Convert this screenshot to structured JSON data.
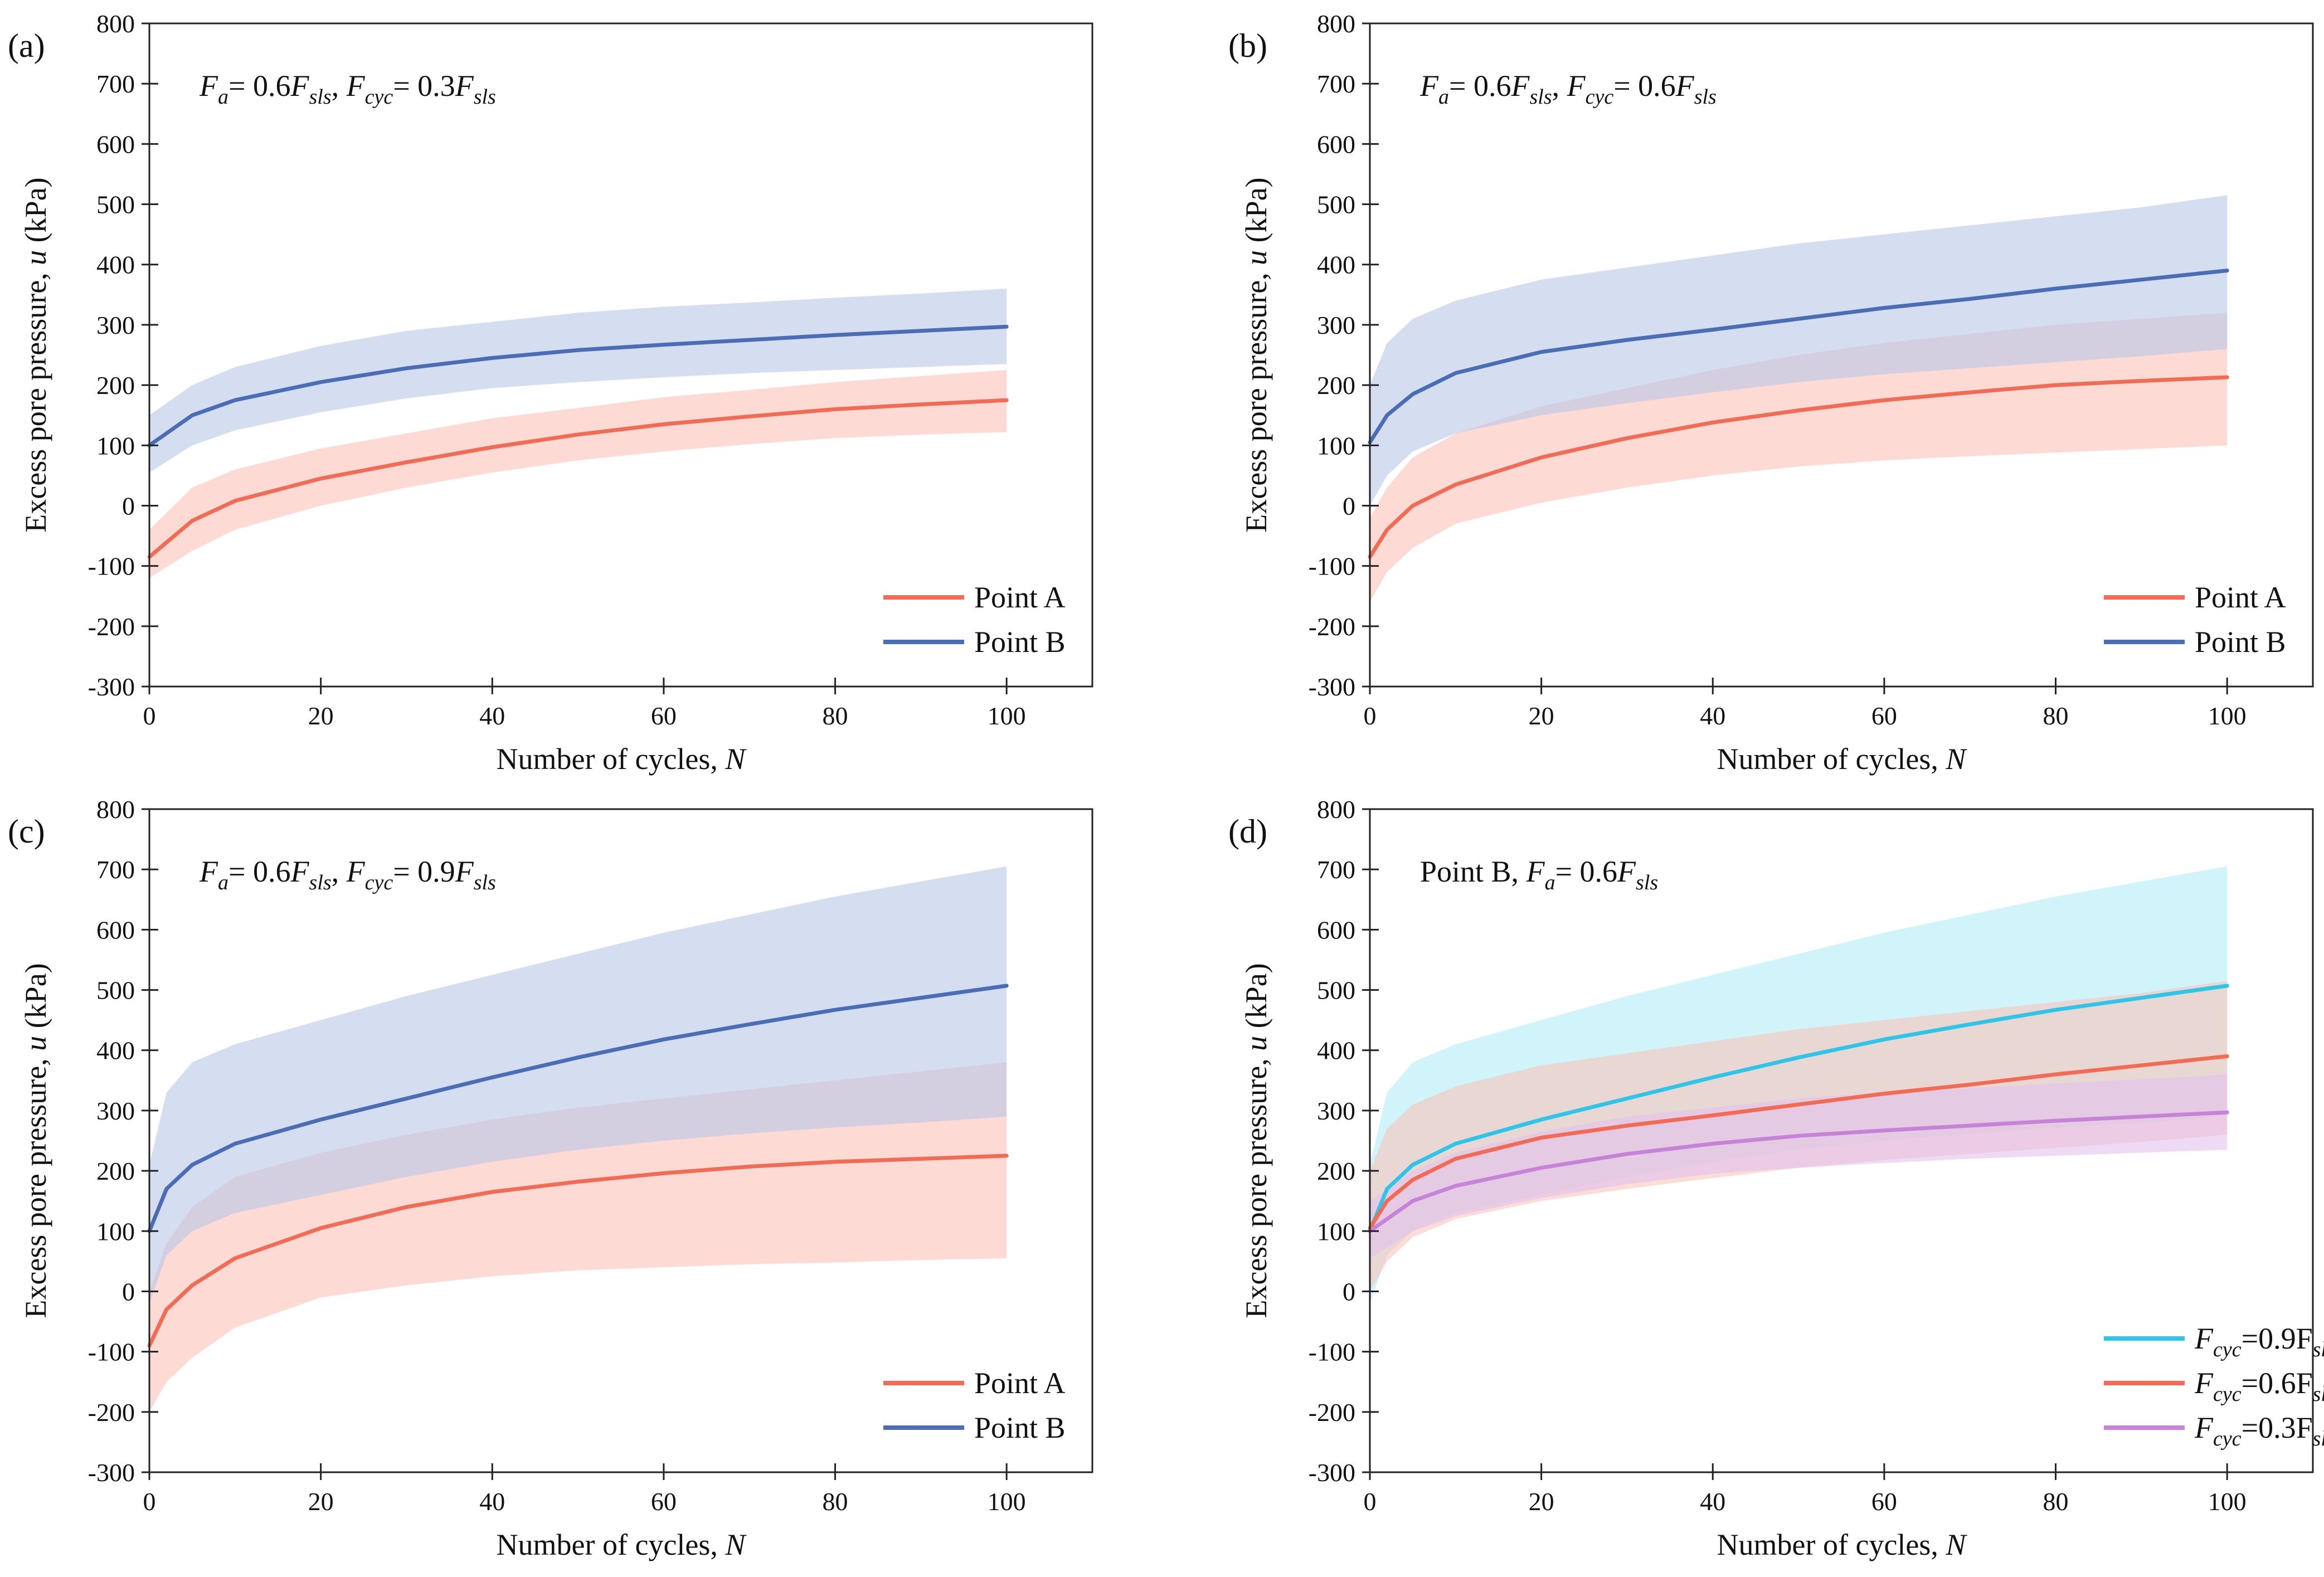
{
  "figure": {
    "colors": {
      "point_a": "#f26b55",
      "point_b": "#4a6db5",
      "point_a_band": "#fbc3b8",
      "point_b_band": "#b9c7e8",
      "fcyc_09": "#2ec5e8",
      "fcyc_09_band": "#b2ebf7",
      "fcyc_06": "#f26b55",
      "fcyc_06_band": "#f8c4bb",
      "fcyc_03": "#c783d8",
      "fcyc_03_band": "#e3c1ec"
    }
  },
  "chart_data": [
    {
      "type": "line",
      "panel_label": "(a)",
      "annotation": {
        "parts": [
          "F",
          "a",
          "= 0.6F",
          "sls",
          ",  ",
          "F",
          "cyc",
          "= 0.3F",
          "sls"
        ]
      },
      "xlabel": "Number of cycles, ",
      "xlabel_var": "N",
      "ylabel": "Excess pore pressure, ",
      "ylabel_var": "u",
      "ylabel_unit": " (kPa)",
      "xlim": [
        0,
        110
      ],
      "ylim": [
        -300,
        800
      ],
      "xticks": [
        0,
        20,
        40,
        60,
        80,
        100
      ],
      "yticks": [
        -300,
        -200,
        -100,
        0,
        100,
        200,
        300,
        400,
        500,
        600,
        700,
        800
      ],
      "legend_position": "bottom-right",
      "series": [
        {
          "name": "Point A",
          "color_key": "point_a",
          "band_key": "point_a_band",
          "x": [
            0,
            5,
            10,
            20,
            30,
            40,
            50,
            60,
            70,
            80,
            90,
            100
          ],
          "y": [
            -85,
            -25,
            8,
            45,
            72,
            97,
            118,
            135,
            148,
            160,
            168,
            175
          ],
          "lower": [
            -120,
            -75,
            -40,
            0,
            30,
            55,
            75,
            90,
            102,
            112,
            118,
            122
          ],
          "upper": [
            -40,
            30,
            60,
            95,
            120,
            145,
            162,
            180,
            192,
            205,
            215,
            225
          ]
        },
        {
          "name": "Point B",
          "color_key": "point_b",
          "band_key": "point_b_band",
          "x": [
            0,
            5,
            10,
            20,
            30,
            40,
            50,
            60,
            70,
            80,
            90,
            100
          ],
          "y": [
            100,
            150,
            175,
            205,
            228,
            245,
            258,
            267,
            275,
            283,
            290,
            297
          ],
          "lower": [
            55,
            100,
            125,
            155,
            178,
            195,
            205,
            213,
            220,
            225,
            230,
            235
          ],
          "upper": [
            150,
            200,
            230,
            265,
            290,
            305,
            320,
            330,
            337,
            345,
            352,
            360
          ]
        }
      ]
    },
    {
      "type": "line",
      "panel_label": "(b)",
      "annotation": {
        "parts": [
          "F",
          "a",
          "= 0.6F",
          "sls",
          ",  ",
          "F",
          "cyc",
          "= 0.6F",
          "sls"
        ]
      },
      "xlabel": "Number of cycles, ",
      "xlabel_var": "N",
      "ylabel": "Excess pore pressure, ",
      "ylabel_var": "u",
      "ylabel_unit": " (kPa)",
      "xlim": [
        0,
        110
      ],
      "ylim": [
        -300,
        800
      ],
      "xticks": [
        0,
        20,
        40,
        60,
        80,
        100
      ],
      "yticks": [
        -300,
        -200,
        -100,
        0,
        100,
        200,
        300,
        400,
        500,
        600,
        700,
        800
      ],
      "legend_position": "bottom-right",
      "series": [
        {
          "name": "Point A",
          "color_key": "point_a",
          "band_key": "point_a_band",
          "x": [
            0,
            2,
            5,
            10,
            20,
            30,
            40,
            50,
            60,
            70,
            80,
            90,
            100
          ],
          "y": [
            -85,
            -40,
            0,
            35,
            80,
            112,
            138,
            158,
            175,
            188,
            200,
            207,
            213
          ],
          "lower": [
            -160,
            -110,
            -70,
            -30,
            5,
            30,
            50,
            65,
            75,
            82,
            88,
            94,
            100
          ],
          "upper": [
            -20,
            30,
            80,
            120,
            165,
            195,
            225,
            250,
            270,
            285,
            300,
            310,
            320
          ]
        },
        {
          "name": "Point B",
          "color_key": "point_b",
          "band_key": "point_b_band",
          "x": [
            0,
            2,
            5,
            10,
            20,
            30,
            40,
            50,
            60,
            70,
            80,
            90,
            100
          ],
          "y": [
            105,
            150,
            185,
            220,
            255,
            275,
            292,
            310,
            328,
            343,
            360,
            375,
            390
          ],
          "lower": [
            0,
            50,
            90,
            120,
            150,
            170,
            188,
            205,
            218,
            228,
            238,
            248,
            260
          ],
          "upper": [
            200,
            270,
            310,
            340,
            375,
            395,
            415,
            435,
            450,
            465,
            480,
            495,
            515
          ]
        }
      ]
    },
    {
      "type": "line",
      "panel_label": "(c)",
      "annotation": {
        "parts": [
          "F",
          "a",
          "= 0.6F",
          "sls",
          ",  ",
          "F",
          "cyc",
          "= 0.9F",
          "sls"
        ]
      },
      "xlabel": "Number of cycles, ",
      "xlabel_var": "N",
      "ylabel": "Excess pore pressure, ",
      "ylabel_var": "u",
      "ylabel_unit": " (kPa)",
      "xlim": [
        0,
        110
      ],
      "ylim": [
        -300,
        800
      ],
      "xticks": [
        0,
        20,
        40,
        60,
        80,
        100
      ],
      "yticks": [
        -300,
        -200,
        -100,
        0,
        100,
        200,
        300,
        400,
        500,
        600,
        700,
        800
      ],
      "legend_position": "bottom-right",
      "series": [
        {
          "name": "Point A",
          "color_key": "point_a",
          "band_key": "point_a_band",
          "x": [
            0,
            2,
            5,
            10,
            20,
            30,
            40,
            50,
            60,
            70,
            80,
            90,
            100
          ],
          "y": [
            -90,
            -30,
            10,
            55,
            105,
            140,
            165,
            182,
            196,
            207,
            215,
            220,
            225
          ],
          "lower": [
            -200,
            -150,
            -110,
            -60,
            -10,
            10,
            25,
            35,
            40,
            45,
            48,
            52,
            55
          ],
          "upper": [
            0,
            80,
            140,
            190,
            230,
            260,
            285,
            305,
            320,
            335,
            350,
            365,
            380
          ]
        },
        {
          "name": "Point B",
          "color_key": "point_b",
          "band_key": "point_b_band",
          "x": [
            0,
            2,
            5,
            10,
            20,
            30,
            40,
            50,
            60,
            70,
            80,
            90,
            100
          ],
          "y": [
            100,
            170,
            210,
            245,
            285,
            320,
            355,
            388,
            418,
            443,
            467,
            487,
            507
          ],
          "lower": [
            -20,
            60,
            100,
            130,
            160,
            190,
            215,
            235,
            250,
            262,
            272,
            280,
            290
          ],
          "upper": [
            210,
            330,
            380,
            410,
            450,
            490,
            525,
            560,
            595,
            625,
            655,
            680,
            705
          ]
        }
      ]
    },
    {
      "type": "line",
      "panel_label": "(d)",
      "annotation": {
        "parts": [
          "Point B,  ",
          "F",
          "a",
          "= 0.6F",
          "sls"
        ]
      },
      "xlabel": "Number of cycles, ",
      "xlabel_var": "N",
      "ylabel": "Excess pore pressure, ",
      "ylabel_var": "u",
      "ylabel_unit": " (kPa)",
      "xlim": [
        0,
        110
      ],
      "ylim": [
        -300,
        800
      ],
      "xticks": [
        0,
        20,
        40,
        60,
        80,
        100
      ],
      "yticks": [
        -300,
        -200,
        -100,
        0,
        100,
        200,
        300,
        400,
        500,
        600,
        700,
        800
      ],
      "legend_position": "bottom-right",
      "series": [
        {
          "name": "F",
          "name_sub": "cyc",
          "name_mid": "=0.9F",
          "name_sub2": "sls",
          "color_key": "fcyc_09",
          "band_key": "fcyc_09_band",
          "x": [
            0,
            2,
            5,
            10,
            20,
            30,
            40,
            50,
            60,
            70,
            80,
            90,
            100
          ],
          "y": [
            100,
            170,
            210,
            245,
            285,
            320,
            355,
            388,
            418,
            443,
            467,
            487,
            507
          ],
          "lower": [
            -20,
            60,
            100,
            130,
            160,
            190,
            215,
            235,
            250,
            262,
            272,
            280,
            290
          ],
          "upper": [
            210,
            330,
            380,
            410,
            450,
            490,
            525,
            560,
            595,
            625,
            655,
            680,
            705
          ]
        },
        {
          "name": "F",
          "name_sub": "cyc",
          "name_mid": "=0.6F",
          "name_sub2": "sls",
          "color_key": "fcyc_06",
          "band_key": "fcyc_06_band",
          "x": [
            0,
            2,
            5,
            10,
            20,
            30,
            40,
            50,
            60,
            70,
            80,
            90,
            100
          ],
          "y": [
            105,
            150,
            185,
            220,
            255,
            275,
            292,
            310,
            328,
            343,
            360,
            375,
            390
          ],
          "lower": [
            0,
            50,
            90,
            120,
            150,
            170,
            188,
            205,
            218,
            228,
            238,
            248,
            260
          ],
          "upper": [
            200,
            270,
            310,
            340,
            375,
            395,
            415,
            435,
            450,
            465,
            480,
            495,
            515
          ]
        },
        {
          "name": "F",
          "name_sub": "cyc",
          "name_mid": "=0.3F",
          "name_sub2": "sls",
          "color_key": "fcyc_03",
          "band_key": "fcyc_03_band",
          "x": [
            0,
            5,
            10,
            20,
            30,
            40,
            50,
            60,
            70,
            80,
            90,
            100
          ],
          "y": [
            100,
            150,
            175,
            205,
            228,
            245,
            258,
            267,
            275,
            283,
            290,
            297
          ],
          "lower": [
            55,
            100,
            125,
            155,
            178,
            195,
            205,
            213,
            220,
            225,
            230,
            235
          ],
          "upper": [
            150,
            200,
            230,
            265,
            290,
            305,
            320,
            330,
            337,
            345,
            352,
            360
          ]
        }
      ]
    }
  ]
}
